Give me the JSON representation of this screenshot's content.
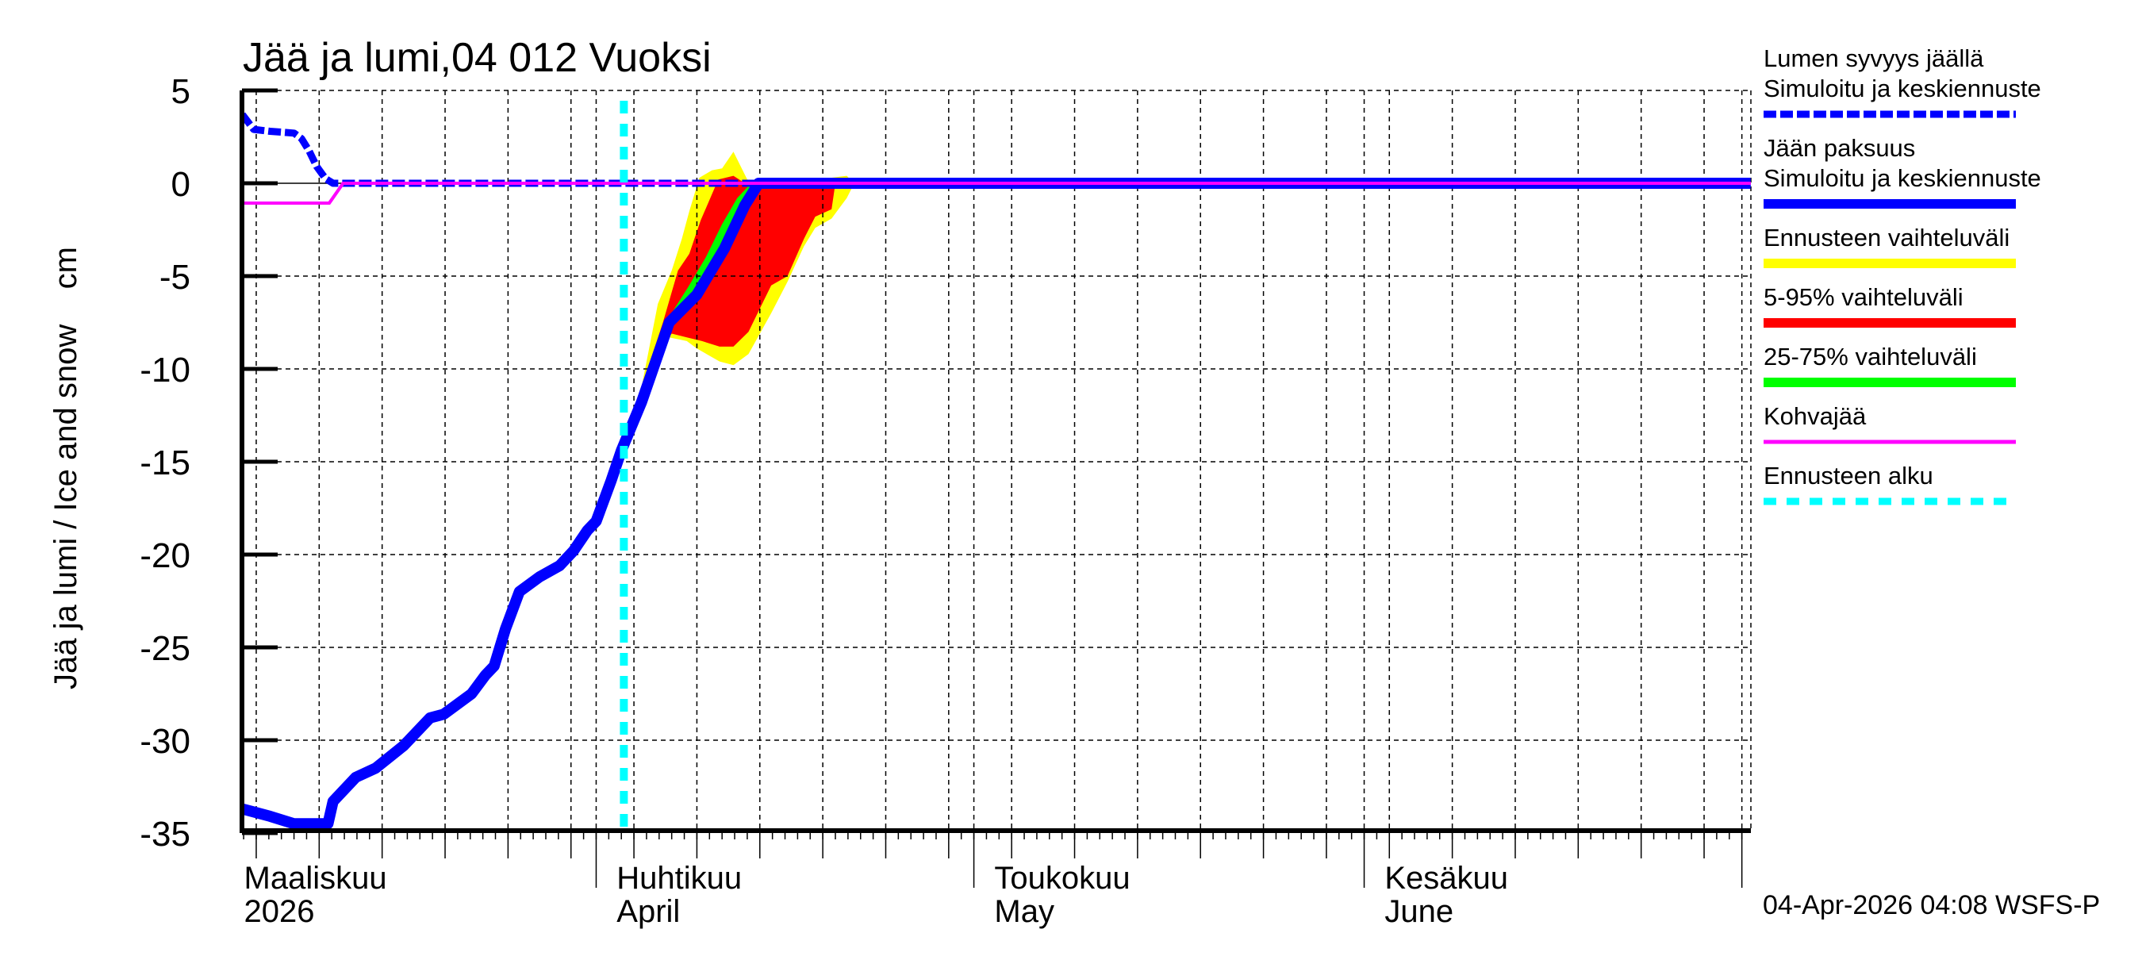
{
  "chart_data": {
    "type": "line",
    "title": "Jää ja lumi,04 012 Vuoksi",
    "ylabel": "Jää ja lumi / Ice and snow    cm",
    "xlabel": "",
    "ylim": [
      -35,
      5
    ],
    "yticks": [
      5,
      0,
      -5,
      -10,
      -15,
      -20,
      -25,
      -30,
      -35
    ],
    "x_unit": "days since 2026-03-01 (0 = 1 Mar 2026)",
    "xlim": [
      2.9,
      122.7
    ],
    "grid": true,
    "x_gridlines_every_days": 5,
    "month_labels": [
      {
        "day": 0,
        "line1": "Maaliskuu",
        "line2": "2026",
        "label_day": 2.9
      },
      {
        "day": 31,
        "line1": "Huhtikuu",
        "line2": "April",
        "label_day": 32.5
      },
      {
        "day": 61,
        "line1": "Toukokuu",
        "line2": "May",
        "label_day": 62.5
      },
      {
        "day": 92,
        "line1": "Kesäkuu",
        "line2": "June",
        "label_day": 93.5
      }
    ],
    "forecast_start_day": 33.2,
    "series": [
      {
        "name": "Lumen syvyys jäällä — Simuloitu ja keskiennuste",
        "color": "#0000ff",
        "style": "dashed",
        "width": 9,
        "x": [
          2.9,
          3.8,
          5.1,
          7.0,
          7.6,
          8.2,
          8.8,
          9.5,
          10.1,
          122.7
        ],
        "y": [
          3.7,
          2.9,
          2.8,
          2.7,
          2.4,
          1.75,
          0.9,
          0.25,
          0,
          0
        ]
      },
      {
        "name": "Jään paksuus — Simuloitu ja keskiennuste",
        "color": "#0000ff",
        "style": "solid",
        "width": 14,
        "x": [
          2.9,
          5.1,
          7.0,
          9.7,
          10.1,
          11.9,
          13.5,
          15.7,
          17.8,
          18.9,
          21.1,
          22.2,
          22.9,
          23.8,
          24.9,
          26.5,
          28.1,
          29.2,
          30.3,
          31.0,
          32.2,
          33.0,
          34.6,
          36.8,
          39.0,
          41.2,
          42.8,
          43.9,
          122.7
        ],
        "y": [
          -33.7,
          -34.1,
          -34.5,
          -34.5,
          -33.3,
          -32.0,
          -31.5,
          -30.3,
          -28.8,
          -28.6,
          -27.5,
          -26.5,
          -26.0,
          -24.0,
          -22.0,
          -21.2,
          -20.6,
          -19.8,
          -18.7,
          -18.2,
          -16.0,
          -14.4,
          -11.8,
          -7.5,
          -6.0,
          -3.5,
          -1.2,
          0,
          0
        ]
      },
      {
        "name": "Kohvajää",
        "color": "#ff00ff",
        "style": "solid",
        "width": 4,
        "x": [
          2.9,
          9.8,
          10.9,
          122.7
        ],
        "y": [
          -1.07,
          -1.07,
          0,
          0
        ]
      }
    ],
    "bands": [
      {
        "name": "Ennusteen vaihteluväli",
        "color": "#ffff00",
        "upper": {
          "x": [
            33.2,
            34.6,
            35.9,
            37.0,
            37.8,
            38.4,
            39.2,
            40.2,
            41.0,
            41.9,
            43.0,
            44.5,
            47.0,
            48.5,
            49.7,
            50.9,
            51.5
          ],
          "y": [
            -14.4,
            -11.0,
            -6.5,
            -4.7,
            -3.0,
            -1.5,
            0.3,
            0.7,
            0.8,
            1.7,
            0.2,
            0,
            0,
            0.3,
            0.3,
            0.4,
            0
          ]
        },
        "lower": {
          "x": [
            33.2,
            34.6,
            35.6,
            36.8,
            38.2,
            39.0,
            40.8,
            41.9,
            43.1,
            44.9,
            46.2,
            47.5,
            48.4,
            49.7,
            50.9,
            51.5
          ],
          "y": [
            -14.4,
            -12.0,
            -9.4,
            -8.3,
            -8.5,
            -8.9,
            -9.6,
            -9.8,
            -9.2,
            -7.0,
            -5.3,
            -3.4,
            -2.4,
            -1.9,
            -0.8,
            0
          ]
        }
      },
      {
        "name": "5-95% vaihteluväli",
        "color": "#ff0000",
        "upper": {
          "x": [
            33.2,
            34.6,
            36.3,
            37.5,
            38.4,
            39.3,
            40.7,
            41.9,
            42.6,
            43.5,
            44.5,
            50.0
          ],
          "y": [
            -14.4,
            -11.0,
            -7.5,
            -4.7,
            -3.8,
            -2.0,
            0.2,
            0.4,
            0.1,
            0,
            0,
            0
          ]
        },
        "lower": {
          "x": [
            33.2,
            34.6,
            36.2,
            37.0,
            38.2,
            39.4,
            40.8,
            41.9,
            43.1,
            44.9,
            46.2,
            47.5,
            48.4,
            49.7,
            50.0
          ],
          "y": [
            -14.4,
            -11.8,
            -8.8,
            -8.1,
            -8.3,
            -8.5,
            -8.8,
            -8.8,
            -8.0,
            -5.5,
            -5.0,
            -3.0,
            -1.8,
            -1.4,
            0
          ]
        }
      },
      {
        "name": "25-75% vaihteluväli",
        "color": "#00ff00",
        "upper": {
          "x": [
            33.2,
            34.6,
            36.8,
            38.3,
            39.7,
            41.0,
            42.2,
            43.3,
            43.9
          ],
          "y": [
            -14.4,
            -11.8,
            -7.2,
            -5.6,
            -4.0,
            -2.2,
            -0.8,
            0,
            0
          ]
        },
        "lower": {
          "x": [
            33.2,
            34.6,
            36.8,
            38.6,
            39.9,
            41.2,
            42.4,
            43.6,
            44.6
          ],
          "y": [
            -14.4,
            -11.8,
            -7.5,
            -6.4,
            -4.8,
            -3.2,
            -1.6,
            -0.3,
            0
          ]
        }
      }
    ],
    "legend": {
      "position": "right",
      "entries": [
        {
          "line1": "Lumen syvyys jäällä",
          "line2": "Simuloitu ja keskiennuste",
          "color": "#0000ff",
          "style": "dashed"
        },
        {
          "line1": "Jään paksuus",
          "line2": "Simuloitu ja keskiennuste",
          "color": "#0000ff",
          "style": "solid"
        },
        {
          "line1": "Ennusteen vaihteluväli",
          "color": "#ffff00",
          "style": "solid"
        },
        {
          "line1": "5-95% vaihteluväli",
          "color": "#ff0000",
          "style": "solid"
        },
        {
          "line1": "25-75% vaihteluväli",
          "color": "#00ff00",
          "style": "solid"
        },
        {
          "line1": "Kohvajää",
          "color": "#ff00ff",
          "style": "thin"
        },
        {
          "line1": "Ennusteen alku",
          "color": "#00ffff",
          "style": "dashed"
        }
      ]
    },
    "footer": "04-Apr-2026 04:08 WSFS-P"
  }
}
